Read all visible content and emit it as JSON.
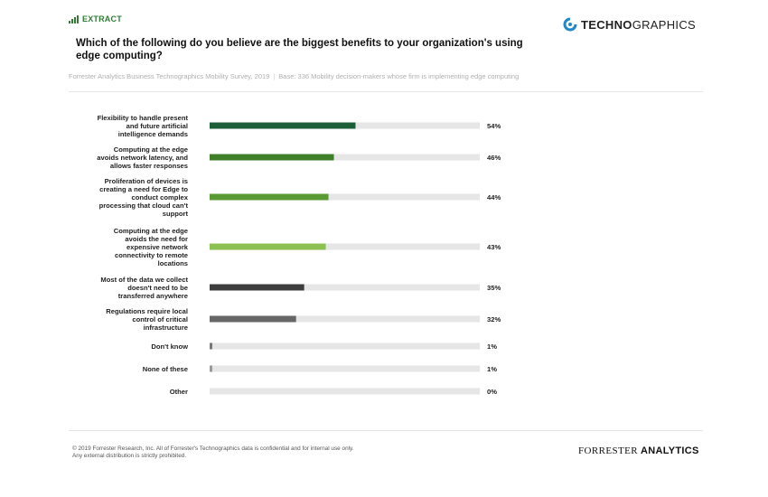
{
  "header": {
    "extract_label": "EXTRACT",
    "brand_bold": "TECHNO",
    "brand_light": "GRAPHICS",
    "question": "Which of the following do you believe are the biggest benefits to your organization's using edge computing?",
    "source": "Forrester Analytics Business Technographics Mobility Survey, 2019",
    "base": "Base: 336 Mobility decision-makers whose firm is implementing edge computing"
  },
  "footer": {
    "copyright_line1": "© 2019 Forrester Research, Inc. All of Forrester's Technographics data is confidential and for internal use only.",
    "copyright_line2": "Any external distribution is strictly prohibited.",
    "logo_main": "FORRESTER",
    "logo_sub": "ANALYTICS"
  },
  "colors": {
    "accent_green": "#2e7d32",
    "track": "#e6e6e6",
    "logo_blue": "#1e88c8"
  },
  "chart_data": {
    "type": "bar",
    "orientation": "horizontal",
    "xlim": [
      0,
      100
    ],
    "unit": "%",
    "categories": [
      [
        "Flexibility to handle present",
        "and future artificial",
        "intelligence demands"
      ],
      [
        "Computing at the edge",
        "avoids network latency, and",
        "allows faster responses"
      ],
      [
        "Proliferation of devices is",
        "creating a need for Edge to",
        "conduct complex",
        "processing that cloud can't",
        "support"
      ],
      [
        "Computing at the edge",
        "avoids the need for",
        "expensive network",
        "connectivity to remote",
        "locations"
      ],
      [
        "Most of the data we collect",
        "doesn't need to be",
        "transferred anywhere"
      ],
      [
        "Regulations require local",
        "control of critical",
        "infrastructure"
      ],
      [
        "Don't know"
      ],
      [
        "None of these"
      ],
      [
        "Other"
      ]
    ],
    "values": [
      54,
      46,
      44,
      43,
      35,
      32,
      1,
      1,
      0
    ],
    "value_labels": [
      "54%",
      "46%",
      "44%",
      "43%",
      "35%",
      "32%",
      "1%",
      "1%",
      "0%"
    ],
    "bar_colors": [
      "#1b5e37",
      "#3f7f2a",
      "#5a9a35",
      "#8cc152",
      "#3d3d3d",
      "#666666",
      "#777777",
      "#999999",
      "#bbbbbb"
    ]
  }
}
